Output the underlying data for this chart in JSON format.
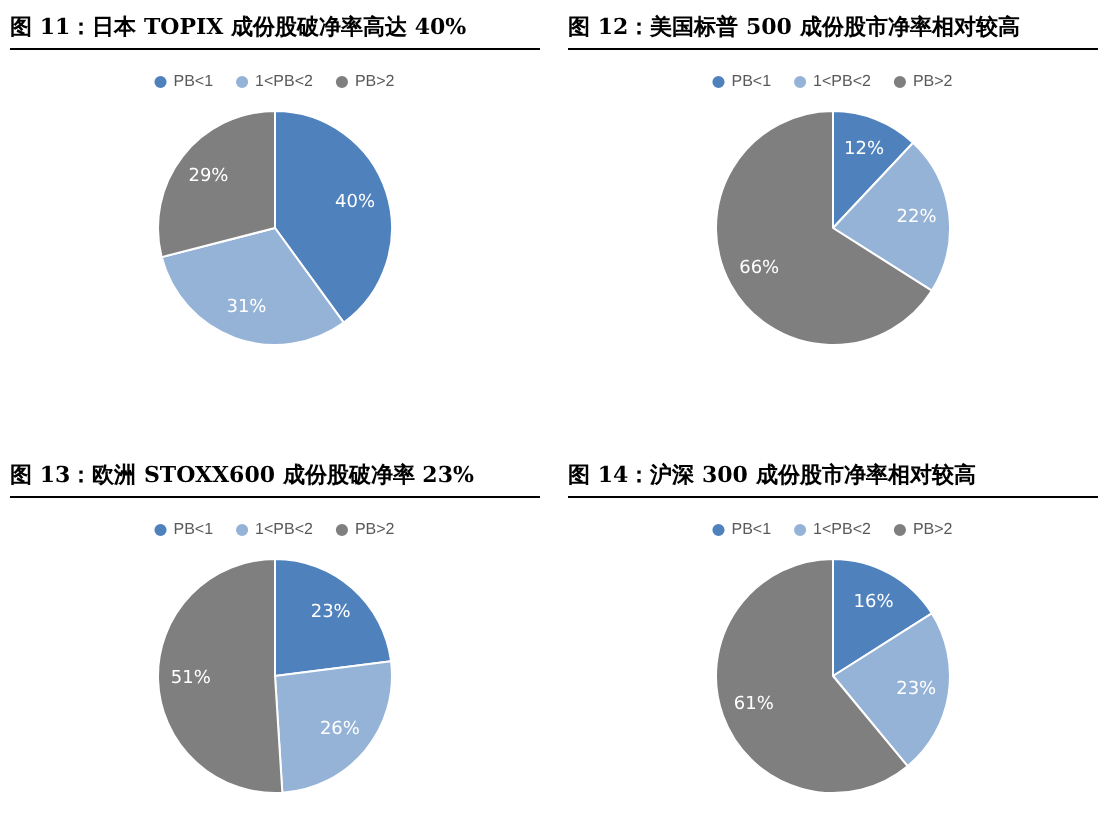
{
  "chart_data": [
    {
      "type": "pie",
      "title": "图 11：日本 TOPIX 成份股破净率高达 40%",
      "categories": [
        "PB<1",
        "1<PB<2",
        "PB>2"
      ],
      "values": [
        40,
        31,
        29
      ],
      "colors": [
        "#4f81bd",
        "#95b3d7",
        "#7f7f7f"
      ],
      "value_labels": [
        "40%",
        "31%",
        "29%"
      ],
      "legend": "top"
    },
    {
      "type": "pie",
      "title": "图 12：美国标普 500 成份股市净率相对较高",
      "categories": [
        "PB<1",
        "1<PB<2",
        "PB>2"
      ],
      "values": [
        12,
        22,
        66
      ],
      "colors": [
        "#4f81bd",
        "#95b3d7",
        "#7f7f7f"
      ],
      "value_labels": [
        "12%",
        "22%",
        "66%"
      ],
      "legend": "top"
    },
    {
      "type": "pie",
      "title": "图 13：欧洲 STOXX600 成份股破净率 23%",
      "categories": [
        "PB<1",
        "1<PB<2",
        "PB>2"
      ],
      "values": [
        23,
        26,
        51
      ],
      "colors": [
        "#4f81bd",
        "#95b3d7",
        "#7f7f7f"
      ],
      "value_labels": [
        "23%",
        "26%",
        "51%"
      ],
      "legend": "top"
    },
    {
      "type": "pie",
      "title": "图 14：沪深 300 成份股市净率相对较高",
      "categories": [
        "PB<1",
        "1<PB<2",
        "PB>2"
      ],
      "values": [
        16,
        23,
        61
      ],
      "colors": [
        "#4f81bd",
        "#95b3d7",
        "#7f7f7f"
      ],
      "value_labels": [
        "16%",
        "23%",
        "61%"
      ],
      "legend": "top"
    }
  ]
}
